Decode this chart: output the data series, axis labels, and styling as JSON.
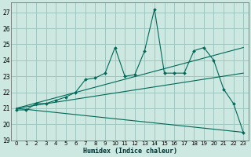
{
  "xlabel": "Humidex (Indice chaleur)",
  "bg_color": "#cce8e0",
  "grid_color": "#a0c8c0",
  "line_color": "#006858",
  "xlim": [
    -0.5,
    23.5
  ],
  "ylim": [
    19,
    27.6
  ],
  "yticks": [
    19,
    20,
    21,
    22,
    23,
    24,
    25,
    26,
    27
  ],
  "xticks": [
    0,
    1,
    2,
    3,
    4,
    5,
    6,
    7,
    8,
    9,
    10,
    11,
    12,
    13,
    14,
    15,
    16,
    17,
    18,
    19,
    20,
    21,
    22,
    23
  ],
  "xtick_labels": [
    "0",
    "1",
    "2",
    "3",
    "4",
    "5",
    "6",
    "7",
    "8",
    "9",
    "10",
    "11",
    "12",
    "13",
    "14",
    "15",
    "16",
    "17",
    "18",
    "19",
    "20",
    "21",
    "22",
    "23"
  ],
  "series1": {
    "x": [
      0,
      1,
      2,
      3,
      4,
      5,
      6,
      7,
      8,
      9,
      10,
      11,
      12,
      13,
      14,
      15,
      16,
      17,
      18,
      19,
      20,
      21,
      22,
      23
    ],
    "y": [
      20.9,
      20.9,
      21.3,
      21.3,
      21.5,
      21.7,
      22.0,
      22.8,
      22.9,
      23.2,
      24.8,
      23.0,
      23.1,
      24.6,
      27.2,
      23.2,
      23.2,
      23.2,
      24.6,
      24.8,
      24.0,
      22.2,
      21.3,
      19.5
    ]
  },
  "series2": {
    "x": [
      0,
      23
    ],
    "y": [
      21.0,
      24.8
    ]
  },
  "series3": {
    "x": [
      0,
      23
    ],
    "y": [
      21.0,
      23.2
    ]
  },
  "series4": {
    "x": [
      0,
      23
    ],
    "y": [
      21.0,
      19.5
    ]
  }
}
